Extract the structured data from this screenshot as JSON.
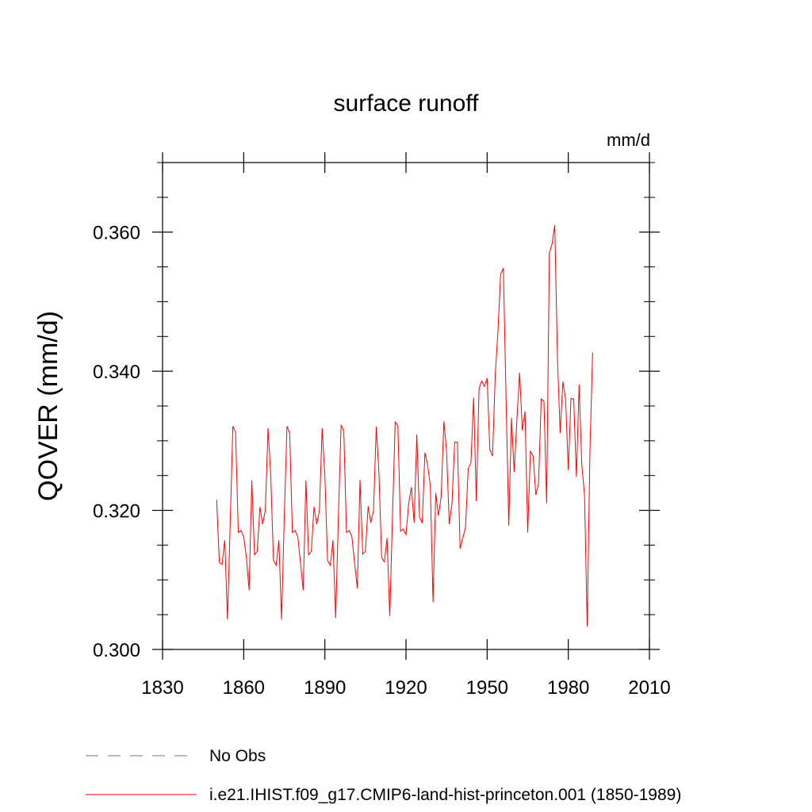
{
  "chart_data": {
    "type": "line",
    "title": "surface runoff",
    "units": "mm/d",
    "ylabel": "QOVER  (mm/d)",
    "xlabel": "",
    "xlim": [
      1830,
      2010
    ],
    "ylim": [
      0.3,
      0.37
    ],
    "xticks": [
      1830,
      1860,
      1890,
      1920,
      1950,
      1980,
      2010
    ],
    "yticks": [
      0.3,
      0.32,
      0.34,
      0.36
    ],
    "ytick_labels": [
      "0.300",
      "0.320",
      "0.340",
      "0.360"
    ],
    "grid": false,
    "legend_position": "bottom",
    "series": [
      {
        "name": "No Obs",
        "color": "#7b68c8",
        "style": "dashed",
        "x": [],
        "values": []
      },
      {
        "name": "i.e21.IHIST.f09_g17.CMIP6-land-hist-princeton.001 (1850-1989)",
        "color": "#ff0000",
        "style": "solid",
        "x": [
          1850,
          1851,
          1852,
          1853,
          1854,
          1855,
          1856,
          1857,
          1858,
          1859,
          1860,
          1861,
          1862,
          1863,
          1864,
          1865,
          1866,
          1867,
          1868,
          1869,
          1870,
          1871,
          1872,
          1873,
          1874,
          1875,
          1876,
          1877,
          1878,
          1879,
          1880,
          1881,
          1882,
          1883,
          1884,
          1885,
          1886,
          1887,
          1888,
          1889,
          1890,
          1891,
          1892,
          1893,
          1894,
          1895,
          1896,
          1897,
          1898,
          1899,
          1900,
          1901,
          1902,
          1903,
          1904,
          1905,
          1906,
          1907,
          1908,
          1909,
          1910,
          1911,
          1912,
          1913,
          1914,
          1915,
          1916,
          1917,
          1918,
          1919,
          1920,
          1921,
          1922,
          1923,
          1924,
          1925,
          1926,
          1927,
          1928,
          1929,
          1930,
          1931,
          1932,
          1933,
          1934,
          1935,
          1936,
          1937,
          1938,
          1939,
          1940,
          1941,
          1942,
          1943,
          1944,
          1945,
          1946,
          1947,
          1948,
          1949,
          1950,
          1951,
          1952,
          1953,
          1954,
          1955,
          1956,
          1957,
          1958,
          1959,
          1960,
          1961,
          1962,
          1963,
          1964,
          1965,
          1966,
          1967,
          1968,
          1969,
          1970,
          1971,
          1972,
          1973,
          1974,
          1975,
          1976,
          1977,
          1978,
          1979,
          1980,
          1981,
          1982,
          1983,
          1984,
          1985,
          1986,
          1987,
          1988,
          1989
        ],
        "values": [
          0.3215,
          0.3125,
          0.3122,
          0.3157,
          0.3043,
          0.318,
          0.3321,
          0.3312,
          0.3168,
          0.3171,
          0.3162,
          0.3132,
          0.3085,
          0.3243,
          0.3136,
          0.3141,
          0.3205,
          0.318,
          0.32,
          0.3318,
          0.325,
          0.3128,
          0.3121,
          0.3157,
          0.3043,
          0.319,
          0.3321,
          0.3311,
          0.3168,
          0.3171,
          0.3162,
          0.3124,
          0.3085,
          0.3243,
          0.3136,
          0.3141,
          0.3205,
          0.318,
          0.32,
          0.3318,
          0.325,
          0.3128,
          0.3121,
          0.3157,
          0.3045,
          0.319,
          0.3322,
          0.3315,
          0.3168,
          0.3171,
          0.3162,
          0.3124,
          0.3088,
          0.3244,
          0.3137,
          0.3141,
          0.3206,
          0.3182,
          0.32,
          0.332,
          0.3253,
          0.3132,
          0.3126,
          0.316,
          0.3048,
          0.319,
          0.3327,
          0.3322,
          0.317,
          0.3173,
          0.3165,
          0.321,
          0.3233,
          0.3182,
          0.3309,
          0.319,
          0.3182,
          0.3283,
          0.3265,
          0.3235,
          0.3068,
          0.3225,
          0.3192,
          0.322,
          0.3328,
          0.3285,
          0.318,
          0.321,
          0.3298,
          0.3298,
          0.3145,
          0.316,
          0.3175,
          0.326,
          0.3268,
          0.3362,
          0.3213,
          0.3375,
          0.3386,
          0.3378,
          0.339,
          0.3287,
          0.3278,
          0.3395,
          0.3458,
          0.354,
          0.3548,
          0.336,
          0.3178,
          0.3333,
          0.3255,
          0.333,
          0.3398,
          0.3315,
          0.3342,
          0.3168,
          0.3285,
          0.3278,
          0.3222,
          0.3238,
          0.336,
          0.3357,
          0.321,
          0.357,
          0.3583,
          0.361,
          0.3418,
          0.3311,
          0.3385,
          0.336,
          0.3258,
          0.3361,
          0.336,
          0.3248,
          0.3381,
          0.3265,
          0.3222,
          0.3033,
          0.3285,
          0.3427
        ]
      }
    ]
  }
}
